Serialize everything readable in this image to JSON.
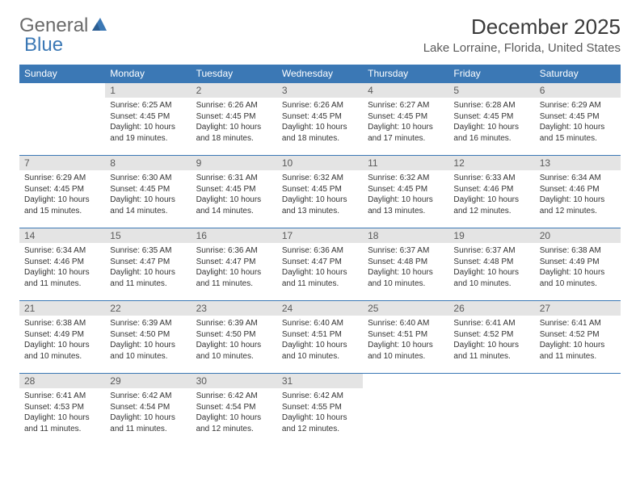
{
  "brand": {
    "part1": "General",
    "part2": "Blue"
  },
  "title": "December 2025",
  "location": "Lake Lorraine, Florida, United States",
  "colors": {
    "header_bg": "#3b78b5",
    "header_text": "#ffffff",
    "daynum_bg": "#e4e4e4",
    "text": "#333333",
    "border": "#3b78b5"
  },
  "dayNames": [
    "Sunday",
    "Monday",
    "Tuesday",
    "Wednesday",
    "Thursday",
    "Friday",
    "Saturday"
  ],
  "startOffset": 1,
  "days": [
    {
      "n": 1,
      "sunrise": "6:25 AM",
      "sunset": "4:45 PM",
      "daylight": "10 hours and 19 minutes."
    },
    {
      "n": 2,
      "sunrise": "6:26 AM",
      "sunset": "4:45 PM",
      "daylight": "10 hours and 18 minutes."
    },
    {
      "n": 3,
      "sunrise": "6:26 AM",
      "sunset": "4:45 PM",
      "daylight": "10 hours and 18 minutes."
    },
    {
      "n": 4,
      "sunrise": "6:27 AM",
      "sunset": "4:45 PM",
      "daylight": "10 hours and 17 minutes."
    },
    {
      "n": 5,
      "sunrise": "6:28 AM",
      "sunset": "4:45 PM",
      "daylight": "10 hours and 16 minutes."
    },
    {
      "n": 6,
      "sunrise": "6:29 AM",
      "sunset": "4:45 PM",
      "daylight": "10 hours and 15 minutes."
    },
    {
      "n": 7,
      "sunrise": "6:29 AM",
      "sunset": "4:45 PM",
      "daylight": "10 hours and 15 minutes."
    },
    {
      "n": 8,
      "sunrise": "6:30 AM",
      "sunset": "4:45 PM",
      "daylight": "10 hours and 14 minutes."
    },
    {
      "n": 9,
      "sunrise": "6:31 AM",
      "sunset": "4:45 PM",
      "daylight": "10 hours and 14 minutes."
    },
    {
      "n": 10,
      "sunrise": "6:32 AM",
      "sunset": "4:45 PM",
      "daylight": "10 hours and 13 minutes."
    },
    {
      "n": 11,
      "sunrise": "6:32 AM",
      "sunset": "4:45 PM",
      "daylight": "10 hours and 13 minutes."
    },
    {
      "n": 12,
      "sunrise": "6:33 AM",
      "sunset": "4:46 PM",
      "daylight": "10 hours and 12 minutes."
    },
    {
      "n": 13,
      "sunrise": "6:34 AM",
      "sunset": "4:46 PM",
      "daylight": "10 hours and 12 minutes."
    },
    {
      "n": 14,
      "sunrise": "6:34 AM",
      "sunset": "4:46 PM",
      "daylight": "10 hours and 11 minutes."
    },
    {
      "n": 15,
      "sunrise": "6:35 AM",
      "sunset": "4:47 PM",
      "daylight": "10 hours and 11 minutes."
    },
    {
      "n": 16,
      "sunrise": "6:36 AM",
      "sunset": "4:47 PM",
      "daylight": "10 hours and 11 minutes."
    },
    {
      "n": 17,
      "sunrise": "6:36 AM",
      "sunset": "4:47 PM",
      "daylight": "10 hours and 11 minutes."
    },
    {
      "n": 18,
      "sunrise": "6:37 AM",
      "sunset": "4:48 PM",
      "daylight": "10 hours and 10 minutes."
    },
    {
      "n": 19,
      "sunrise": "6:37 AM",
      "sunset": "4:48 PM",
      "daylight": "10 hours and 10 minutes."
    },
    {
      "n": 20,
      "sunrise": "6:38 AM",
      "sunset": "4:49 PM",
      "daylight": "10 hours and 10 minutes."
    },
    {
      "n": 21,
      "sunrise": "6:38 AM",
      "sunset": "4:49 PM",
      "daylight": "10 hours and 10 minutes."
    },
    {
      "n": 22,
      "sunrise": "6:39 AM",
      "sunset": "4:50 PM",
      "daylight": "10 hours and 10 minutes."
    },
    {
      "n": 23,
      "sunrise": "6:39 AM",
      "sunset": "4:50 PM",
      "daylight": "10 hours and 10 minutes."
    },
    {
      "n": 24,
      "sunrise": "6:40 AM",
      "sunset": "4:51 PM",
      "daylight": "10 hours and 10 minutes."
    },
    {
      "n": 25,
      "sunrise": "6:40 AM",
      "sunset": "4:51 PM",
      "daylight": "10 hours and 10 minutes."
    },
    {
      "n": 26,
      "sunrise": "6:41 AM",
      "sunset": "4:52 PM",
      "daylight": "10 hours and 11 minutes."
    },
    {
      "n": 27,
      "sunrise": "6:41 AM",
      "sunset": "4:52 PM",
      "daylight": "10 hours and 11 minutes."
    },
    {
      "n": 28,
      "sunrise": "6:41 AM",
      "sunset": "4:53 PM",
      "daylight": "10 hours and 11 minutes."
    },
    {
      "n": 29,
      "sunrise": "6:42 AM",
      "sunset": "4:54 PM",
      "daylight": "10 hours and 11 minutes."
    },
    {
      "n": 30,
      "sunrise": "6:42 AM",
      "sunset": "4:54 PM",
      "daylight": "10 hours and 12 minutes."
    },
    {
      "n": 31,
      "sunrise": "6:42 AM",
      "sunset": "4:55 PM",
      "daylight": "10 hours and 12 minutes."
    }
  ],
  "labels": {
    "sunrise": "Sunrise:",
    "sunset": "Sunset:",
    "daylight": "Daylight:"
  }
}
